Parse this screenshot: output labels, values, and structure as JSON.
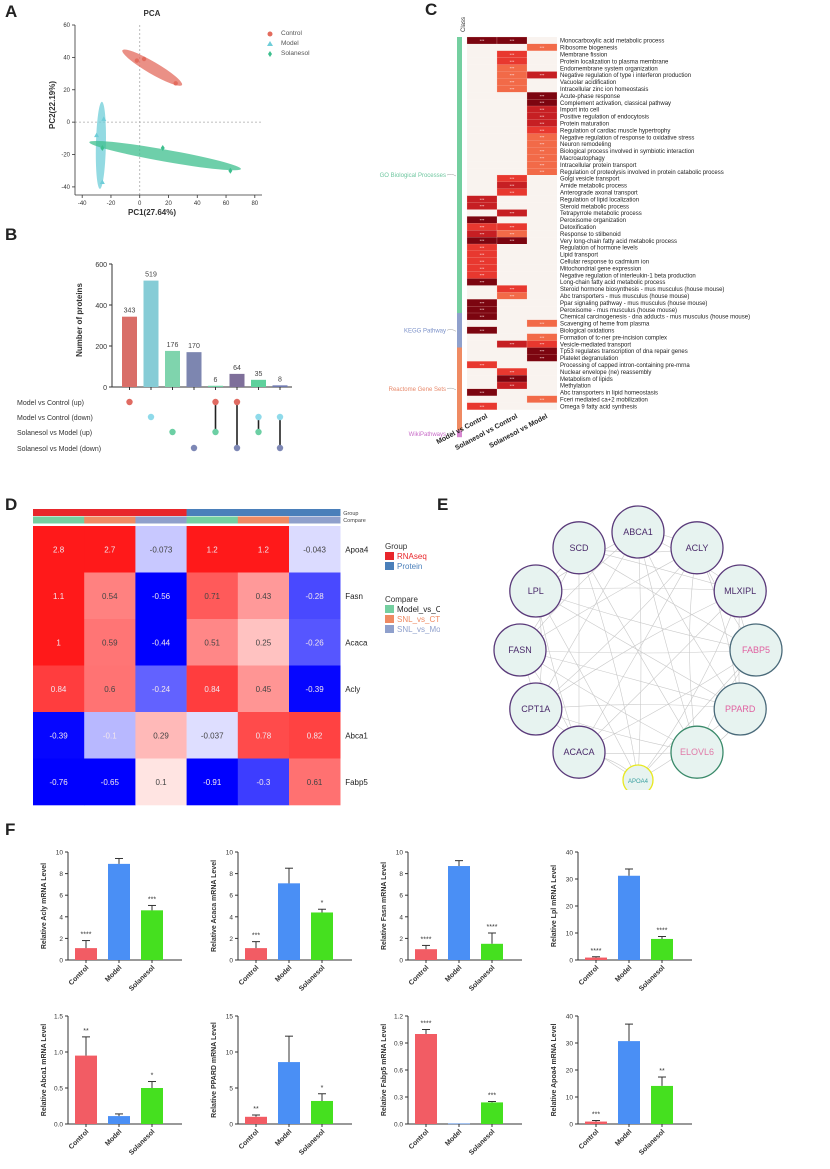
{
  "panels": {
    "A": "A",
    "B": "B",
    "C": "C",
    "D": "D",
    "E": "E",
    "F": "F"
  },
  "colors": {
    "control": "#e36b5d",
    "model": "#6fcdd8",
    "solanesol": "#3dbf8e",
    "purple": "#7a86b5",
    "bar_red": "#f25c64",
    "bar_blue": "#4a8ff5",
    "bar_green": "#45e01f"
  },
  "chart_data": [
    {
      "id": "A",
      "type": "scatter",
      "title": "PCA",
      "xlabel": "PC1(27.64%)",
      "ylabel": "PC2(22.19%)",
      "xlim": [
        -45,
        85
      ],
      "ylim": [
        -45,
        60
      ],
      "xticks": [
        "-40",
        "-20",
        "0",
        "20",
        "40",
        "60",
        "80"
      ],
      "yticks": [
        "-40",
        "-20",
        "0",
        "20",
        "40",
        "60"
      ],
      "legend": [
        "Control",
        "Model",
        "Solanesol"
      ],
      "series": [
        {
          "name": "Control",
          "points": [
            [
              -2,
              38
            ],
            [
              3,
              39
            ],
            [
              25,
              24
            ]
          ]
        },
        {
          "name": "Model",
          "points": [
            [
              -30,
              -8
            ],
            [
              -25,
              2
            ],
            [
              -26,
              -37
            ]
          ]
        },
        {
          "name": "Solanesol",
          "points": [
            [
              -26,
              -16
            ],
            [
              16,
              -16
            ],
            [
              63,
              -30
            ]
          ]
        }
      ]
    },
    {
      "id": "B",
      "type": "bar",
      "ylabel": "Number of proteins",
      "ylim": [
        0,
        600
      ],
      "yticks": [
        "0",
        "200",
        "400",
        "600"
      ],
      "values": [
        343,
        519,
        176,
        170,
        6,
        64,
        35,
        8
      ],
      "value_labels": [
        "343",
        "519",
        "176",
        "170",
        "6",
        "64",
        "35",
        "8"
      ],
      "sets": [
        "Model vs Control (up)",
        "Model vs Control (down)",
        "Solanesol vs Model (up)",
        "Solanesol vs Model (down)"
      ],
      "membership": [
        [
          0
        ],
        [
          1
        ],
        [
          2
        ],
        [
          3
        ],
        [
          0,
          2
        ],
        [
          0,
          3
        ],
        [
          1,
          2
        ],
        [
          1,
          3
        ]
      ]
    },
    {
      "id": "C",
      "type": "heatmap",
      "class_header": "Class",
      "columns": [
        "Model vs Control",
        "Solanesol vs Control",
        "Solanesol vs Model"
      ],
      "classes": [
        {
          "name": "GO Biological Processes",
          "count": 40
        },
        {
          "name": "KEGG Pathway",
          "count": 5
        },
        {
          "name": "Reactome Gene Sets",
          "count": 12
        },
        {
          "name": "WikiPathways",
          "count": 1
        }
      ],
      "cell_label": "***",
      "rows": [
        {
          "term": "Monocarboxylic acid metabolic process",
          "v": [
            4,
            4,
            0
          ]
        },
        {
          "term": "Ribosome biogenesis",
          "v": [
            0,
            0,
            1
          ]
        },
        {
          "term": "Membrane fission",
          "v": [
            0,
            2,
            0
          ]
        },
        {
          "term": "Protein localization to plasma membrane",
          "v": [
            0,
            2,
            0
          ]
        },
        {
          "term": "Endomembrane system organization",
          "v": [
            0,
            1,
            0
          ]
        },
        {
          "term": "Negative regulation of type i interferon production",
          "v": [
            0,
            1,
            3
          ]
        },
        {
          "term": "Vacuolar acidification",
          "v": [
            0,
            1,
            0
          ]
        },
        {
          "term": "Intracellular zinc ion homeostasis",
          "v": [
            0,
            1,
            0
          ]
        },
        {
          "term": "Acute-phase response",
          "v": [
            0,
            0,
            4
          ]
        },
        {
          "term": "Complement activation, classical pathway",
          "v": [
            0,
            0,
            4
          ]
        },
        {
          "term": "Import into cell",
          "v": [
            0,
            0,
            3
          ]
        },
        {
          "term": "Positive regulation of endocytosis",
          "v": [
            0,
            0,
            3
          ]
        },
        {
          "term": "Protein maturation",
          "v": [
            0,
            0,
            3
          ]
        },
        {
          "term": "Regulation of cardiac muscle hypertrophy",
          "v": [
            0,
            0,
            2
          ]
        },
        {
          "term": "Negative regulation of response to oxidative stress",
          "v": [
            0,
            0,
            1
          ]
        },
        {
          "term": "Neuron remodeling",
          "v": [
            0,
            0,
            1
          ]
        },
        {
          "term": "Biological process involved in symbiotic interaction",
          "v": [
            0,
            0,
            1
          ]
        },
        {
          "term": "Macroautophagy",
          "v": [
            0,
            0,
            1
          ]
        },
        {
          "term": "Intracellular protein transport",
          "v": [
            0,
            0,
            1
          ]
        },
        {
          "term": "Regulation of proteolysis involved in protein catabolic process",
          "v": [
            0,
            0,
            1
          ]
        },
        {
          "term": "Golgi vesicle transport",
          "v": [
            0,
            2,
            0
          ]
        },
        {
          "term": "Amide metabolic process",
          "v": [
            0,
            3,
            0
          ]
        },
        {
          "term": "Anterograde axonal transport",
          "v": [
            0,
            2,
            0
          ]
        },
        {
          "term": "Regulation of lipid localization",
          "v": [
            3,
            0,
            0
          ]
        },
        {
          "term": "Steroid metabolic process",
          "v": [
            3,
            0,
            0
          ]
        },
        {
          "term": "Tetrapyrrole metabolic process",
          "v": [
            0,
            3,
            0
          ]
        },
        {
          "term": "Peroxisome organization",
          "v": [
            4,
            0,
            0
          ]
        },
        {
          "term": "Detoxification",
          "v": [
            2,
            2,
            0
          ]
        },
        {
          "term": "Response to stilbenoid",
          "v": [
            3,
            1,
            0
          ]
        },
        {
          "term": "Very long-chain fatty acid metabolic process",
          "v": [
            4,
            4,
            0
          ]
        },
        {
          "term": "Regulation of hormone levels",
          "v": [
            2,
            0,
            0
          ]
        },
        {
          "term": "Lipid transport",
          "v": [
            2,
            0,
            0
          ]
        },
        {
          "term": "Cellular response to cadmium ion",
          "v": [
            2,
            0,
            0
          ]
        },
        {
          "term": "Mitochondrial gene expression",
          "v": [
            2,
            0,
            0
          ]
        },
        {
          "term": "Negative regulation of interleukin-1 beta production",
          "v": [
            2,
            0,
            0
          ]
        },
        {
          "term": "Long-chain fatty acid metabolic process",
          "v": [
            4,
            0,
            0
          ]
        },
        {
          "term": "Steroid hormone biosynthesis - mus musculus (house mouse)",
          "v": [
            0,
            2,
            0
          ]
        },
        {
          "term": "Abc transporters - mus musculus (house mouse)",
          "v": [
            0,
            1,
            0
          ]
        },
        {
          "term": "Ppar signaling pathway - mus musculus (house mouse)",
          "v": [
            4,
            0,
            0
          ]
        },
        {
          "term": "Peroxisome - mus musculus (house mouse)",
          "v": [
            4,
            0,
            0
          ]
        },
        {
          "term": "Chemical carcinogenesis - dna adducts - mus musculus (house mouse)",
          "v": [
            4,
            0,
            0
          ]
        },
        {
          "term": "Scavenging of heme from plasma",
          "v": [
            0,
            0,
            1
          ]
        },
        {
          "term": "Biological oxidations",
          "v": [
            4,
            0,
            0
          ]
        },
        {
          "term": "Formation of tc-ner pre-incision complex",
          "v": [
            0,
            0,
            1
          ]
        },
        {
          "term": "Vesicle-mediated transport",
          "v": [
            0,
            3,
            2
          ]
        },
        {
          "term": "Tp53 regulates transcription of dna repair genes",
          "v": [
            0,
            0,
            4
          ]
        },
        {
          "term": "Platelet degranulation",
          "v": [
            0,
            0,
            4
          ]
        },
        {
          "term": "Processing of capped intron-containing pre-mrna",
          "v": [
            2,
            0,
            0
          ]
        },
        {
          "term": "Nuclear envelope (ne) reassembly",
          "v": [
            0,
            2,
            0
          ]
        },
        {
          "term": "Metabolism of lipids",
          "v": [
            0,
            4,
            0
          ]
        },
        {
          "term": "Methylation",
          "v": [
            0,
            3,
            0
          ]
        },
        {
          "term": "Abc transporters in lipid homeostasis",
          "v": [
            4,
            0,
            0
          ]
        },
        {
          "term": "Fceri mediated ca+2 mobilization",
          "v": [
            0,
            0,
            1
          ]
        },
        {
          "term": "Omega 9 fatty acid synthesis",
          "v": [
            2,
            0,
            0
          ]
        }
      ]
    },
    {
      "id": "D",
      "type": "heatmap",
      "annotation_labels": [
        "Group",
        "Compare"
      ],
      "rows": [
        "Apoa4",
        "Fasn",
        "Acaca",
        "Acly",
        "Abca1",
        "Fabp5"
      ],
      "col_group": [
        "RNAseq",
        "RNAseq",
        "RNAseq",
        "Protein",
        "Protein",
        "Protein"
      ],
      "col_compare": [
        "Model_vs_CTL",
        "SNL_vs_CTL",
        "SNL_vs_Model",
        "Model_vs_CTL",
        "SNL_vs_CTL",
        "SNL_vs_Model"
      ],
      "values": [
        [
          2.8,
          2.7,
          -0.073,
          1.2,
          1.2,
          -0.043
        ],
        [
          1.1,
          0.54,
          -0.56,
          0.71,
          0.43,
          -0.28
        ],
        [
          1,
          0.59,
          -0.44,
          0.51,
          0.25,
          -0.26
        ],
        [
          0.84,
          0.6,
          -0.24,
          0.84,
          0.45,
          -0.39
        ],
        [
          -0.39,
          -0.1,
          0.29,
          -0.037,
          0.78,
          0.82
        ],
        [
          -0.76,
          -0.65,
          0.1,
          -0.91,
          -0.3,
          0.61
        ]
      ],
      "labels": [
        [
          "2.8",
          "2.7",
          "-0.073",
          "1.2",
          "1.2",
          "-0.043"
        ],
        [
          "1.1",
          "0.54",
          "-0.56",
          "0.71",
          "0.43",
          "-0.28"
        ],
        [
          "1",
          "0.59",
          "-0.44",
          "0.51",
          "0.25",
          "-0.26"
        ],
        [
          "0.84",
          "0.6",
          "-0.24",
          "0.84",
          "0.45",
          "-0.39"
        ],
        [
          "-0.39",
          "-0.1",
          "0.29",
          "-0.037",
          "0.78",
          "0.82"
        ],
        [
          "-0.76",
          "-0.65",
          "0.1",
          "-0.91",
          "-0.3",
          "0.61"
        ]
      ],
      "legend_group_title": "Group",
      "legend_group": [
        {
          "label": "RNAseq",
          "color": "#e8262b"
        },
        {
          "label": "Protein",
          "color": "#4a7fba"
        }
      ],
      "legend_compare_title": "Compare",
      "legend_compare": [
        {
          "label": "Model_vs_CTL",
          "color": "#74cfa0"
        },
        {
          "label": "SNL_vs_CTL",
          "color": "#ef8a62"
        },
        {
          "label": "SNL_vs_Model",
          "color": "#8fa0cc"
        }
      ]
    },
    {
      "id": "E",
      "type": "network",
      "nodes": [
        {
          "id": "ABCA1",
          "text_color": "#4a2a6a",
          "ring": "#5a3a7a"
        },
        {
          "id": "ACLY",
          "text_color": "#4a2a6a",
          "ring": "#5a3a7a"
        },
        {
          "id": "MLXIPL",
          "text_color": "#4a2a6a",
          "ring": "#5a3a7a"
        },
        {
          "id": "FABP5",
          "text_color": "#e060a0",
          "ring": "#4a6a7a"
        },
        {
          "id": "PPARD",
          "text_color": "#e060a0",
          "ring": "#4a6a7a"
        },
        {
          "id": "ELOVL6",
          "text_color": "#e07aa8",
          "ring": "#3a8a6a"
        },
        {
          "id": "APOA4",
          "text_color": "#3aa0a0",
          "ring": "#e8e820"
        },
        {
          "id": "ACACA",
          "text_color": "#4a2a6a",
          "ring": "#5a3a7a"
        },
        {
          "id": "CPT1A",
          "text_color": "#4a2a6a",
          "ring": "#5a3a7a"
        },
        {
          "id": "FASN",
          "text_color": "#4a2a6a",
          "ring": "#5a3a7a"
        },
        {
          "id": "LPL",
          "text_color": "#4a2a6a",
          "ring": "#5a3a7a"
        },
        {
          "id": "SCD",
          "text_color": "#4a2a6a",
          "ring": "#5a3a7a"
        }
      ]
    },
    {
      "id": "F",
      "type": "bar",
      "categories": [
        "Control",
        "Model",
        "Solanesol"
      ],
      "charts": [
        {
          "ylabel": "Relative Acly mRNA Level",
          "ymax": 10,
          "yticks": [
            "0",
            "2",
            "4",
            "6",
            "8",
            "10"
          ],
          "values": [
            1.1,
            8.9,
            4.6
          ],
          "errors": [
            0.7,
            0.5,
            0.45
          ],
          "sig": [
            "****",
            "",
            "***"
          ]
        },
        {
          "ylabel": "Relative Acaca mRNA Level",
          "ymax": 10,
          "yticks": [
            "0",
            "2",
            "4",
            "6",
            "8",
            "10"
          ],
          "values": [
            1.1,
            7.1,
            4.4
          ],
          "errors": [
            0.6,
            1.4,
            0.3
          ],
          "sig": [
            "***",
            "",
            "*"
          ]
        },
        {
          "ylabel": "Relative Fasn mRNA Level",
          "ymax": 10,
          "yticks": [
            "0",
            "2",
            "4",
            "6",
            "8",
            "10"
          ],
          "values": [
            1.0,
            8.7,
            1.5
          ],
          "errors": [
            0.35,
            0.5,
            1.0
          ],
          "sig": [
            "****",
            "",
            "****"
          ]
        },
        {
          "ylabel": "Relative Lpl mRNA Level",
          "ymax": 40,
          "yticks": [
            "0",
            "10",
            "20",
            "30",
            "40"
          ],
          "values": [
            0.9,
            31.2,
            7.8
          ],
          "errors": [
            0.3,
            2.5,
            0.9
          ],
          "sig": [
            "****",
            "",
            "****"
          ]
        },
        {
          "ylabel": "Relative Abca1 mRNA Level",
          "ymax": 1.5,
          "yticks": [
            "0.0",
            "0.5",
            "1.0",
            "1.5"
          ],
          "values": [
            0.95,
            0.11,
            0.5
          ],
          "errors": [
            0.26,
            0.03,
            0.09
          ],
          "sig": [
            "**",
            "",
            "*"
          ]
        },
        {
          "ylabel": "Relative PPARD mRNA Level",
          "ymax": 15,
          "yticks": [
            "0",
            "5",
            "10",
            "15"
          ],
          "values": [
            1.0,
            8.6,
            3.2
          ],
          "errors": [
            0.25,
            3.6,
            1.0
          ],
          "sig": [
            "**",
            "",
            "*"
          ]
        },
        {
          "ylabel": "Relative Fabp5 mRNA Level",
          "ymax": 1.2,
          "yticks": [
            "0.0",
            "0.3",
            "0.6",
            "0.9",
            "1.2"
          ],
          "values": [
            1.0,
            0.005,
            0.24
          ],
          "errors": [
            0.05,
            0.0,
            0.01
          ],
          "sig": [
            "****",
            "",
            "***"
          ]
        },
        {
          "ylabel": "Relative Apoa4 mRNA Level",
          "ymax": 40,
          "yticks": [
            "0",
            "10",
            "20",
            "30",
            "40"
          ],
          "values": [
            0.9,
            30.7,
            14.1
          ],
          "errors": [
            0.4,
            6.3,
            3.3
          ],
          "sig": [
            "***",
            "",
            "**"
          ]
        }
      ]
    }
  ]
}
